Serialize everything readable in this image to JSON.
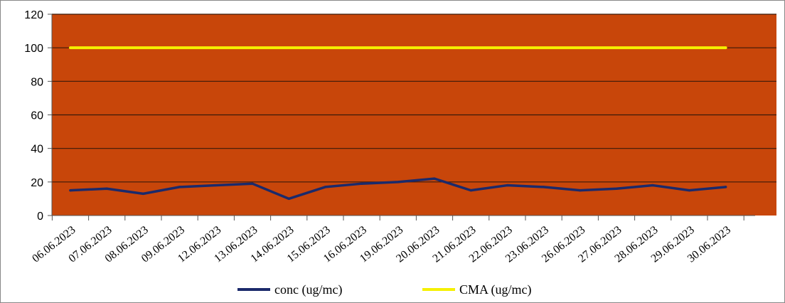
{
  "chart_data": {
    "type": "line",
    "title": "",
    "xlabel": "",
    "ylabel": "",
    "ylim": [
      0,
      120
    ],
    "yticks": [
      0,
      20,
      40,
      60,
      80,
      100,
      120
    ],
    "grid": true,
    "legend_position": "bottom",
    "categories": [
      "06.06.2023",
      "07.06.2023",
      "08.06.2023",
      "09.06.2023",
      "12.06.2023",
      "13.06.2023",
      "14.06.2023",
      "15.06.2023",
      "16.06.2023",
      "19.06.2023",
      "20.06.2023",
      "21.06.2023",
      "22.06.2023",
      "23.06.2023",
      "26.06.2023",
      "27.06.2023",
      "28.06.2023",
      "29.06.2023",
      "30.06.2023"
    ],
    "series": [
      {
        "name": "conc (ug/mc)",
        "color": "#1b2a6b",
        "values": [
          15,
          16,
          13,
          17,
          18,
          19,
          10,
          17,
          19,
          20,
          22,
          15,
          18,
          17,
          15,
          16,
          18,
          15,
          17
        ]
      },
      {
        "name": "CMA (ug/mc)",
        "color": "#f5f000",
        "values": [
          100,
          100,
          100,
          100,
          100,
          100,
          100,
          100,
          100,
          100,
          100,
          100,
          100,
          100,
          100,
          100,
          100,
          100,
          100
        ]
      }
    ],
    "colors": {
      "plot_background": "#c8460a",
      "gridline": "#3a1a0a",
      "axis": "#555555"
    }
  }
}
